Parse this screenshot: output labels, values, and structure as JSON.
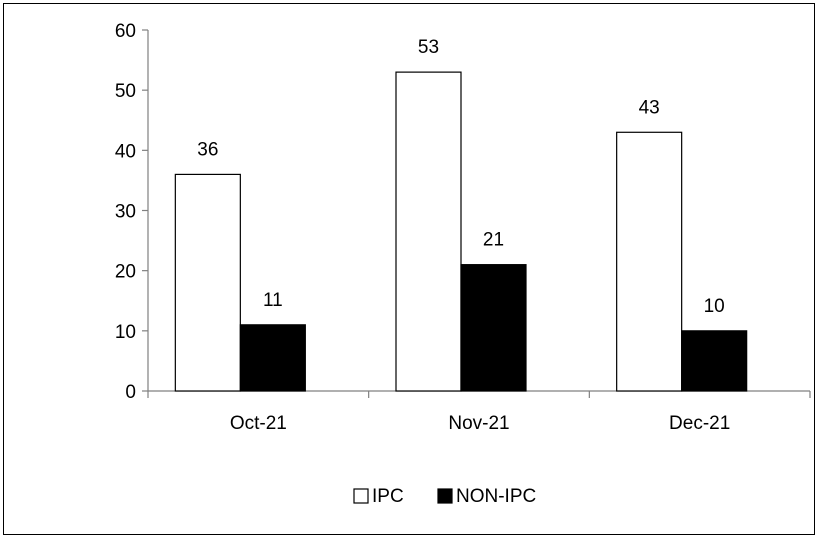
{
  "chart_data": {
    "type": "bar",
    "categories": [
      "Oct-21",
      "Nov-21",
      "Dec-21"
    ],
    "series": [
      {
        "name": "IPC",
        "values": [
          36,
          53,
          43
        ],
        "fill": "#ffffff",
        "stroke": "#000000"
      },
      {
        "name": "NON-IPC",
        "values": [
          11,
          21,
          10
        ],
        "fill": "#000000",
        "stroke": "#000000"
      }
    ],
    "title": "",
    "xlabel": "",
    "ylabel": "",
    "ylim": [
      0,
      60
    ],
    "yticks": [
      0,
      10,
      20,
      30,
      40,
      50,
      60
    ],
    "grid": false,
    "legend_position": "bottom",
    "data_labels": true
  }
}
